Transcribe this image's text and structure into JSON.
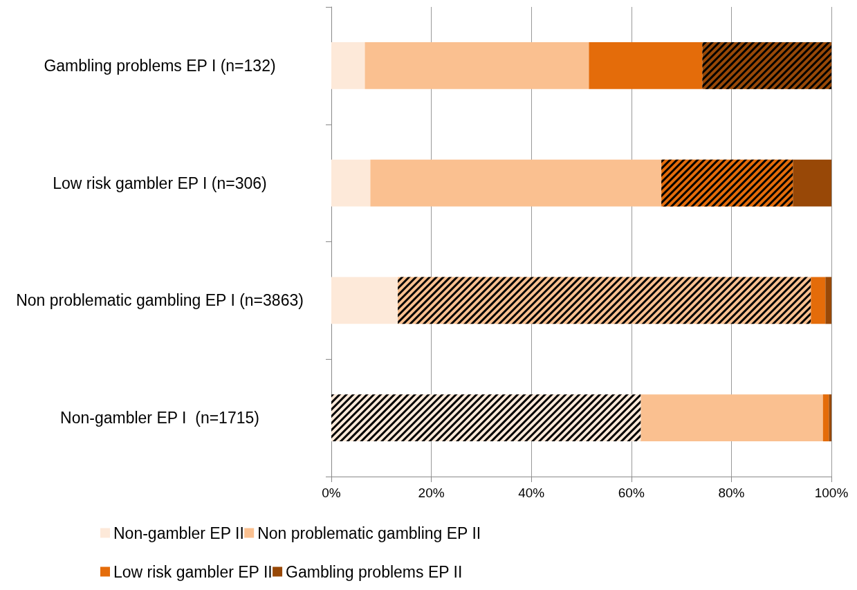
{
  "chart_data": {
    "type": "bar",
    "orientation": "horizontal",
    "stacked": true,
    "categories": [
      "Gambling problems EP I (n=132)",
      "Low risk gambler EP I (n=306)",
      "Non problematic gambling EP I (n=3863)",
      "Non-gambler EP I  (n=1715)"
    ],
    "series": [
      {
        "name": "Non-gambler EP II",
        "color": "#fde9d9",
        "values": [
          6.7,
          7.8,
          13.3,
          61.9
        ]
      },
      {
        "name": "Non problematic gambling EP II",
        "color": "#fac090",
        "values": [
          44.8,
          58.2,
          82.6,
          36.4
        ]
      },
      {
        "name": "Low risk gambler EP II",
        "color": "#e46c0a",
        "values": [
          22.7,
          26.3,
          2.9,
          1.2
        ]
      },
      {
        "name": "Gambling problems EP II",
        "color": "#984807",
        "values": [
          25.8,
          7.7,
          1.2,
          0.5
        ]
      }
    ],
    "xlim": [
      0,
      100
    ],
    "xticks": [
      {
        "value": 0,
        "label": "0%"
      },
      {
        "value": 20,
        "label": "20%"
      },
      {
        "value": 40,
        "label": "40%"
      },
      {
        "value": 60,
        "label": "60%"
      },
      {
        "value": 80,
        "label": "80%"
      },
      {
        "value": 100,
        "label": "100%"
      }
    ],
    "grid": "x",
    "legend": "bottom"
  }
}
